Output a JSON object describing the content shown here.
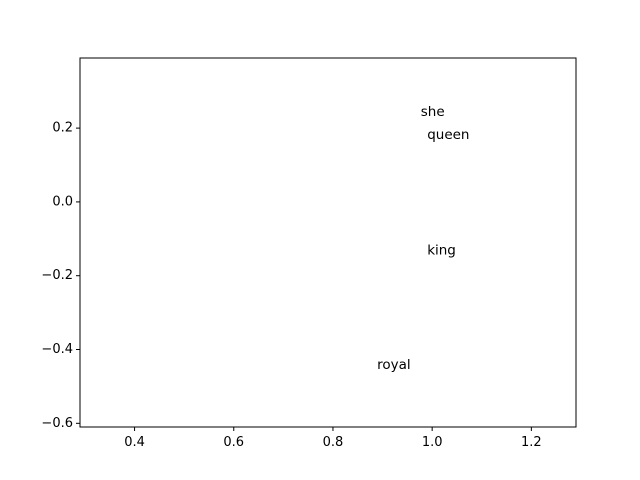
{
  "chart_data": {
    "type": "scatter",
    "title": "",
    "xlabel": "",
    "ylabel": "",
    "xlim": [
      0.29,
      1.29
    ],
    "ylim": [
      -0.61,
      0.39
    ],
    "x_ticks": [
      0.4,
      0.6,
      0.8,
      1.0,
      1.2
    ],
    "x_tick_labels": [
      "0.4",
      "0.6",
      "0.8",
      "1.0",
      "1.2"
    ],
    "y_ticks": [
      0.2,
      0.0,
      -0.2,
      -0.4,
      -0.6
    ],
    "y_tick_labels": [
      "0.2",
      "0.0",
      "−0.2",
      "−0.4",
      "−0.6"
    ],
    "grid": false,
    "points": [
      {
        "label": "she",
        "x": 0.977,
        "y": 0.233
      },
      {
        "label": "queen",
        "x": 0.99,
        "y": 0.17
      },
      {
        "label": "king",
        "x": 0.99,
        "y": -0.143
      },
      {
        "label": "royal",
        "x": 0.889,
        "y": -0.453
      }
    ]
  }
}
